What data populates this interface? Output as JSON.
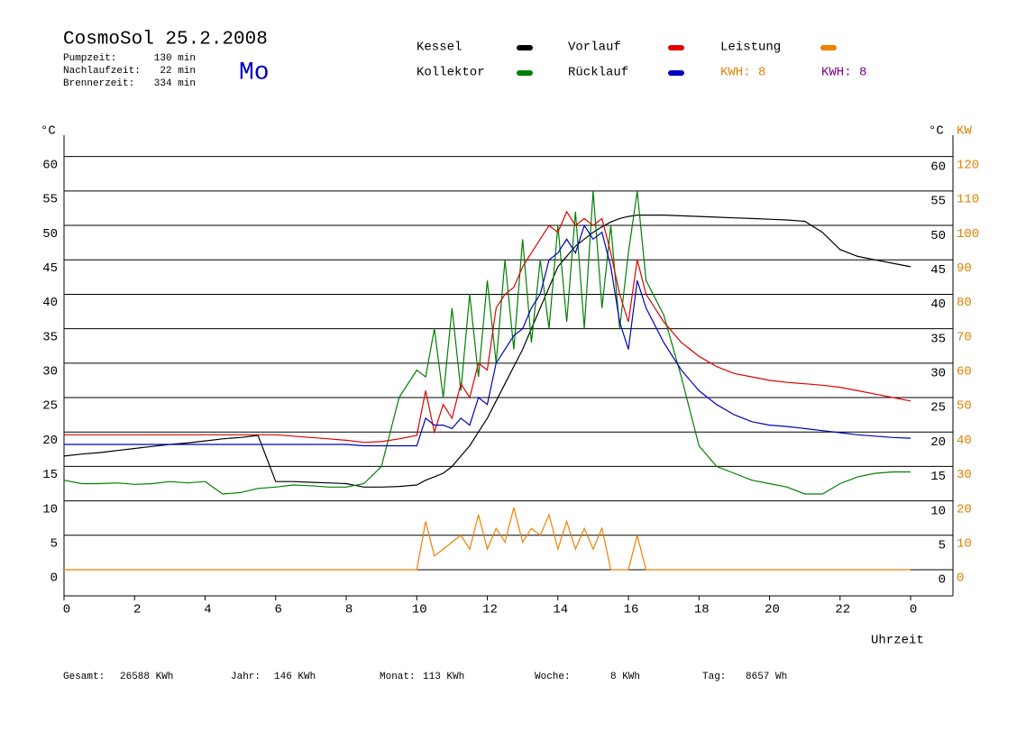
{
  "header": {
    "title": "CosmoSol 25.2.2008",
    "day": "Mo",
    "info": [
      {
        "label": "Pumpzeit:",
        "value": "130 min"
      },
      {
        "label": "Nachlaufzeit:",
        "value": "22 min"
      },
      {
        "label": "Brennerzeit:",
        "value": "334 min"
      }
    ],
    "kwh": [
      {
        "text": "KWH: 8",
        "color": "#e08000"
      },
      {
        "text": "KWH: 8",
        "color": "#800080"
      }
    ]
  },
  "chart_data": {
    "type": "line",
    "y_unit": "°C",
    "y2_unit": "KW",
    "x_label": "Uhrzeit",
    "x": [
      0,
      0.5,
      1,
      1.5,
      2,
      2.5,
      3,
      3.5,
      4,
      4.5,
      5,
      5.5,
      6,
      6.5,
      7,
      7.5,
      8,
      8.5,
      9,
      9.5,
      10,
      10.25,
      10.5,
      10.75,
      11,
      11.25,
      11.5,
      11.75,
      12,
      12.25,
      12.5,
      12.75,
      13,
      13.25,
      13.5,
      13.75,
      14,
      14.25,
      14.5,
      14.75,
      15,
      15.25,
      15.5,
      15.75,
      16,
      16.25,
      16.5,
      17,
      17.5,
      18,
      18.5,
      19,
      19.5,
      20,
      20.5,
      21,
      21.5,
      22,
      22.5,
      23,
      23.5,
      24
    ],
    "xlim": [
      0,
      25.2
    ],
    "xticks": [
      0,
      2,
      4,
      6,
      8,
      10,
      12,
      14,
      16,
      18,
      20,
      22,
      {
        "value": 24,
        "label": "0"
      }
    ],
    "ylim": [
      -3.8,
      63.1
    ],
    "yticks": [
      0,
      5,
      10,
      15,
      20,
      25,
      30,
      35,
      40,
      45,
      50,
      55,
      60
    ],
    "y2lim": [
      -7.6,
      126.2
    ],
    "y2ticks": [
      0,
      10,
      20,
      30,
      40,
      50,
      60,
      70,
      80,
      90,
      100,
      110,
      120
    ],
    "grid": true,
    "series": [
      {
        "name": "Kessel",
        "color": "#000000",
        "values": [
          16.5,
          16.8,
          17,
          17.3,
          17.6,
          17.9,
          18.2,
          18.4,
          18.7,
          19,
          19.2,
          19.5,
          12.8,
          12.8,
          12.7,
          12.6,
          12.5,
          12,
          12,
          12.1,
          12.3,
          13,
          13.5,
          14,
          15,
          16.5,
          18,
          20,
          22,
          24.5,
          27,
          29.5,
          32,
          35,
          38,
          41,
          44,
          45.5,
          47,
          48,
          49,
          49.8,
          50.5,
          51,
          51.3,
          51.5,
          51.5,
          51.5,
          51.4,
          51.3,
          51.2,
          51.1,
          51,
          50.9,
          50.8,
          50.6,
          49,
          46.5,
          45.5,
          45,
          44.5,
          44
        ]
      },
      {
        "name": "Kollektor",
        "color": "#008000",
        "values": [
          13,
          12.5,
          12.5,
          12.6,
          12.4,
          12.5,
          12.8,
          12.6,
          12.8,
          11,
          11.2,
          11.8,
          12,
          12.3,
          12.2,
          12,
          12,
          12.5,
          15,
          25,
          29,
          28,
          35,
          25,
          38,
          26,
          40,
          28,
          42,
          30,
          45,
          32,
          48,
          33,
          45,
          35,
          50,
          36,
          52,
          35,
          55,
          38,
          50,
          35,
          46,
          55,
          42,
          37,
          28,
          18,
          15,
          14,
          13,
          12.5,
          12,
          11,
          11,
          12.5,
          13.5,
          14,
          14.2,
          14.2
        ]
      },
      {
        "name": "Vorlauf",
        "color": "#e00000",
        "values": [
          19.6,
          19.6,
          19.6,
          19.6,
          19.6,
          19.6,
          19.6,
          19.6,
          19.6,
          19.6,
          19.6,
          19.6,
          19.6,
          19.4,
          19.2,
          19,
          18.8,
          18.5,
          18.6,
          19,
          19.5,
          26,
          20,
          24,
          22,
          27,
          25,
          30,
          29,
          38,
          40,
          41,
          44,
          46,
          48,
          50,
          49,
          52,
          50,
          51,
          50,
          51,
          46,
          40,
          36,
          45,
          40,
          36,
          33,
          31,
          29.5,
          28.5,
          28,
          27.5,
          27.2,
          27,
          26.8,
          26.5,
          26,
          25.5,
          25,
          24.5
        ]
      },
      {
        "name": "Rücklauf",
        "color": "#0000c0",
        "values": [
          18.2,
          18.2,
          18.2,
          18.2,
          18.2,
          18.2,
          18.2,
          18.2,
          18.2,
          18.2,
          18.2,
          18.2,
          18.2,
          18.2,
          18.2,
          18.2,
          18.2,
          18,
          18,
          18,
          18,
          22,
          21,
          21,
          20.5,
          22,
          21,
          25,
          24,
          30,
          32,
          34,
          35,
          38,
          40,
          45,
          46,
          48,
          46,
          50,
          48,
          49,
          44,
          36,
          32,
          42,
          38,
          33,
          29,
          26,
          24,
          22.5,
          21.5,
          21,
          20.8,
          20.5,
          20.2,
          19.9,
          19.6,
          19.4,
          19.2,
          19.1
        ]
      },
      {
        "name": "Leistung",
        "color": "#f08000",
        "axis": "y2",
        "values": [
          0,
          0,
          0,
          0,
          0,
          0,
          0,
          0,
          0,
          0,
          0,
          0,
          0,
          0,
          0,
          0,
          0,
          0,
          0,
          0,
          0,
          14,
          4,
          6,
          8,
          10,
          6,
          16,
          6,
          12,
          8,
          18,
          8,
          12,
          10,
          16,
          6,
          14,
          6,
          12,
          6,
          12,
          0,
          0,
          0,
          10,
          0,
          0,
          0,
          0,
          0,
          0,
          0,
          0,
          0,
          0,
          0,
          0,
          0,
          0,
          0,
          0
        ]
      }
    ]
  },
  "footer": [
    {
      "label": "Gesamt:",
      "value": "26588 KWh"
    },
    {
      "label": "Jahr:",
      "value": "146 KWh"
    },
    {
      "label": "Monat:",
      "value": "113 KWh"
    },
    {
      "label": "Woche:",
      "value": "8 KWh"
    },
    {
      "label": "Tag:",
      "value": "8657 Wh"
    }
  ]
}
